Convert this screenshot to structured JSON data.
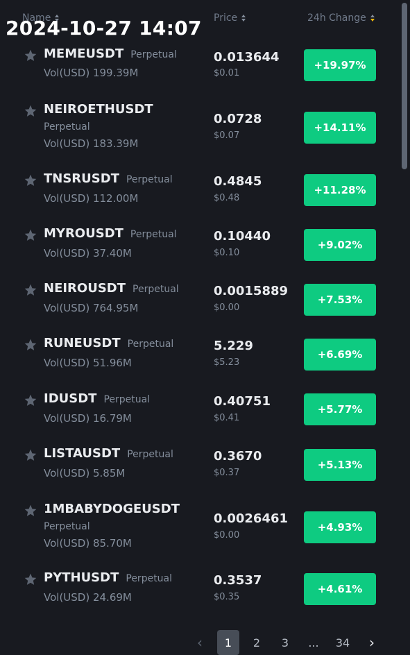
{
  "header": {
    "name_label": "Name",
    "price_label": "Price",
    "change_label": "24h Change"
  },
  "timestamp": "2024-10-27 14:07",
  "rows": [
    {
      "symbol": "MEMEUSDT",
      "type": "Perpetual",
      "volume": "Vol(USD) 199.39M",
      "price": "0.013644",
      "price_usd": "$0.01",
      "change": "+19.97%"
    },
    {
      "symbol": "NEIROETHUSDT",
      "type": "Perpetual",
      "volume": "Vol(USD) 183.39M",
      "price": "0.0728",
      "price_usd": "$0.07",
      "change": "+14.11%"
    },
    {
      "symbol": "TNSRUSDT",
      "type": "Perpetual",
      "volume": "Vol(USD) 112.00M",
      "price": "0.4845",
      "price_usd": "$0.48",
      "change": "+11.28%"
    },
    {
      "symbol": "MYROUSDT",
      "type": "Perpetual",
      "volume": "Vol(USD) 37.40M",
      "price": "0.10440",
      "price_usd": "$0.10",
      "change": "+9.02%"
    },
    {
      "symbol": "NEIROUSDT",
      "type": "Perpetual",
      "volume": "Vol(USD) 764.95M",
      "price": "0.0015889",
      "price_usd": "$0.00",
      "change": "+7.53%"
    },
    {
      "symbol": "RUNEUSDT",
      "type": "Perpetual",
      "volume": "Vol(USD) 51.96M",
      "price": "5.229",
      "price_usd": "$5.23",
      "change": "+6.69%"
    },
    {
      "symbol": "IDUSDT",
      "type": "Perpetual",
      "volume": "Vol(USD) 16.79M",
      "price": "0.40751",
      "price_usd": "$0.41",
      "change": "+5.77%"
    },
    {
      "symbol": "LISTAUSDT",
      "type": "Perpetual",
      "volume": "Vol(USD) 5.85M",
      "price": "0.3670",
      "price_usd": "$0.37",
      "change": "+5.13%"
    },
    {
      "symbol": "1MBABYDOGEUSDT",
      "type": "Perpetual",
      "volume": "Vol(USD) 85.70M",
      "price": "0.0026461",
      "price_usd": "$0.00",
      "change": "+4.93%"
    },
    {
      "symbol": "PYTHUSDT",
      "type": "Perpetual",
      "volume": "Vol(USD) 24.69M",
      "price": "0.3537",
      "price_usd": "$0.35",
      "change": "+4.61%"
    }
  ],
  "pagination": {
    "prev_icon": "chevron-left-icon",
    "pages": [
      "1",
      "2",
      "3",
      "...",
      "34"
    ],
    "current": "1",
    "next_icon": "chevron-right-icon"
  },
  "colors": {
    "background": "#181a20",
    "positive": "#0ecb81",
    "sort_active": "#f0b90b"
  }
}
